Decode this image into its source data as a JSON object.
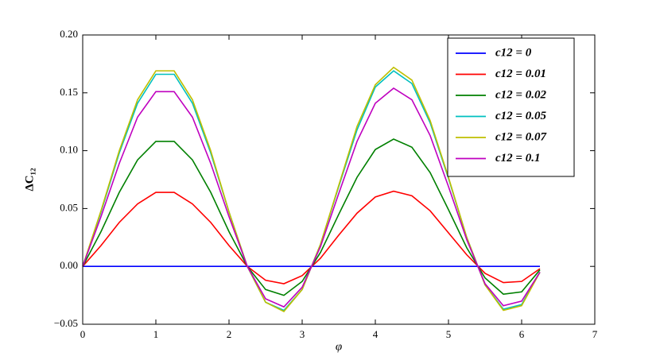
{
  "chart_data": {
    "type": "line",
    "xlabel": "φ",
    "ylabel": "ΔC₁₂",
    "x": [
      0,
      0.25,
      0.5,
      0.75,
      1,
      1.25,
      1.5,
      1.75,
      2,
      2.25,
      2.5,
      2.75,
      3,
      3.25,
      3.5,
      3.75,
      4,
      4.25,
      4.5,
      4.75,
      5,
      5.25,
      5.5,
      5.75,
      6,
      6.25
    ],
    "series": [
      {
        "name": "c12 = 0",
        "color": "#0000ff",
        "values": [
          0,
          0,
          0,
          0,
          0,
          0,
          0,
          0,
          0,
          0,
          0,
          0,
          0,
          0,
          0,
          0,
          0,
          0,
          0,
          0,
          0,
          0,
          0,
          0,
          0,
          0
        ]
      },
      {
        "name": "c12 = 0.01",
        "color": "#ff0000",
        "values": [
          0,
          0.018,
          0.038,
          0.054,
          0.064,
          0.064,
          0.054,
          0.038,
          0.018,
          0,
          -0.012,
          -0.015,
          -0.008,
          0.007,
          0.027,
          0.046,
          0.06,
          0.065,
          0.061,
          0.048,
          0.029,
          0.01,
          -0.006,
          -0.014,
          -0.013,
          -0.002
        ]
      },
      {
        "name": "c12 = 0.02",
        "color": "#008000",
        "values": [
          0,
          0.03,
          0.064,
          0.092,
          0.108,
          0.108,
          0.092,
          0.064,
          0.03,
          0,
          -0.02,
          -0.025,
          -0.013,
          0.012,
          0.045,
          0.077,
          0.101,
          0.11,
          0.103,
          0.081,
          0.049,
          0.016,
          -0.01,
          -0.024,
          -0.022,
          -0.003
        ]
      },
      {
        "name": "c12 = 0.05",
        "color": "#00bfbf",
        "values": [
          0,
          0.047,
          0.098,
          0.141,
          0.166,
          0.166,
          0.141,
          0.098,
          0.047,
          0,
          -0.031,
          -0.038,
          -0.02,
          0.019,
          0.069,
          0.118,
          0.155,
          0.169,
          0.158,
          0.124,
          0.076,
          0.025,
          -0.016,
          -0.037,
          -0.033,
          -0.005
        ]
      },
      {
        "name": "c12 = 0.07",
        "color": "#bfbf00",
        "values": [
          0,
          0.048,
          0.1,
          0.144,
          0.169,
          0.169,
          0.144,
          0.1,
          0.047,
          0,
          -0.031,
          -0.039,
          -0.02,
          0.019,
          0.07,
          0.121,
          0.157,
          0.172,
          0.161,
          0.126,
          0.077,
          0.025,
          -0.016,
          -0.038,
          -0.034,
          -0.005
        ]
      },
      {
        "name": "c12 = 0.1",
        "color": "#bf00bf",
        "values": [
          0,
          0.043,
          0.089,
          0.129,
          0.151,
          0.151,
          0.129,
          0.089,
          0.043,
          0,
          -0.028,
          -0.035,
          -0.018,
          0.017,
          0.063,
          0.108,
          0.141,
          0.154,
          0.144,
          0.113,
          0.069,
          0.023,
          -0.015,
          -0.034,
          -0.03,
          -0.005
        ]
      }
    ],
    "xlim": [
      0,
      7
    ],
    "xticks": [
      0,
      1,
      2,
      3,
      4,
      5,
      6,
      7
    ],
    "ylim": [
      -0.05,
      0.2
    ],
    "yticks": [
      {
        "value": -0.05,
        "label": "−0.05"
      },
      {
        "value": 0,
        "label": "0.00"
      },
      {
        "value": 0.05,
        "label": "0.05"
      },
      {
        "value": 0.1,
        "label": "0.10"
      },
      {
        "value": 0.15,
        "label": "0.15"
      },
      {
        "value": 0.2,
        "label": "0.20"
      }
    ],
    "legend": "upper right",
    "grid": false
  }
}
